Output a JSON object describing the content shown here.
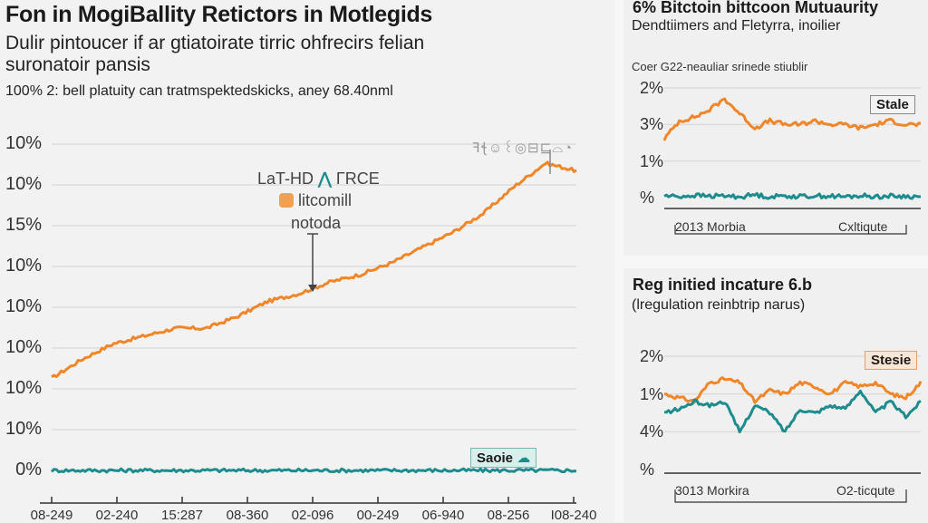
{
  "main": {
    "title": "Fon in MogiBallity Retictors in Motlegids",
    "subtitle": "Dulir pintoucer if ar gtiatoirate tirric ohfrecirs felian suronatoir pansis",
    "note": "100% 2: bell platuity can tratmspektedskicks, aney 68.40nml",
    "annotation": {
      "line1": "LaT-HD",
      "line1b": "ΓRCE",
      "line2": "litcomill",
      "line3": "notoda",
      "peak_label": "ꟻꞎ☺꒰◎⊟⊑⌓◔"
    },
    "legend_tag": "Saoie"
  },
  "panel1": {
    "title": "6% Bitctoin bittcoon Mutuaurity",
    "subtitle": "Dendtiimers and Fletyrra, inoilier",
    "caption": "Coer G22-neauliar srinede stiublir",
    "legend_tag": "Stale",
    "x_start": "2013 Morbia",
    "x_end": "Cxltiqute"
  },
  "panel2": {
    "title": "Reg initied incature 6.b",
    "subtitle": "(lregulation reinbtrip narus)",
    "legend_tag": "Stesie",
    "x_start": "3013 Morkira",
    "x_end": "O2-ticqute"
  },
  "colors": {
    "orange": "#f0862a",
    "teal": "#1e8c8c",
    "grid": "#dcdcdc",
    "axis": "#333333"
  },
  "chart_data": [
    {
      "type": "line",
      "title": "Fon in MogiBallity Retictors in Motlegids",
      "y_tick_labels": [
        "10%",
        "10%",
        "15%",
        "10%",
        "10%",
        "10%",
        "10%",
        "10%",
        "0%"
      ],
      "x_tick_labels": [
        "08-249",
        "02-240",
        "15:287",
        "08-360",
        "02-096",
        "00-249",
        "06-940",
        "08-256",
        "I08-240"
      ],
      "ylim": [
        0,
        8
      ],
      "grid": true,
      "series": [
        {
          "name": "orange",
          "color": "#f0862a",
          "values": [
            2.4,
            2.9,
            3.3,
            3.5,
            3.7,
            3.7,
            4.0,
            4.4,
            4.6,
            4.9,
            5.1,
            5.4,
            5.8,
            6.2,
            6.7,
            7.4,
            8.0,
            7.8
          ]
        },
        {
          "name": "teal",
          "color": "#1e8c8c",
          "values": [
            0.0,
            0.0,
            0.0,
            0.0,
            0.0,
            0.0,
            0.0,
            0.0,
            0.0,
            0.0,
            0.0,
            0.0,
            0.0,
            0.0,
            0.0,
            0.0,
            0.0,
            0.0
          ]
        }
      ],
      "legend": "bottom-right"
    },
    {
      "type": "line",
      "title": "6% Bitctoin bittcoon Mutuaurity",
      "y_tick_labels": [
        "2%",
        "3%",
        "1%",
        "%"
      ],
      "ylim": [
        0,
        3
      ],
      "grid": true,
      "series": [
        {
          "name": "orange",
          "color": "#f0862a",
          "values": [
            1.6,
            2.1,
            2.2,
            2.4,
            2.7,
            2.3,
            1.9,
            2.1,
            2.0,
            2.0,
            2.1,
            2.0,
            2.0,
            1.9,
            2.0,
            2.1,
            2.0,
            2.0
          ]
        },
        {
          "name": "teal",
          "color": "#1e8c8c",
          "values": [
            0.05,
            0.03,
            0.06,
            0.04,
            0.05,
            0.02,
            0.08,
            0.02,
            0.05,
            0.03,
            0.05,
            0.04,
            0.02,
            0.05,
            0.03,
            0.04,
            0.03,
            0.02
          ]
        }
      ],
      "legend": "top-right"
    },
    {
      "type": "line",
      "title": "Reg initied incature 6.b",
      "y_tick_labels": [
        "2%",
        "1%",
        "4%",
        "%"
      ],
      "ylim": [
        0,
        3
      ],
      "grid": true,
      "series": [
        {
          "name": "orange",
          "color": "#f0862a",
          "values": [
            2.0,
            1.9,
            1.8,
            2.3,
            2.4,
            2.3,
            1.8,
            2.1,
            2.0,
            2.3,
            2.2,
            2.0,
            2.3,
            2.2,
            2.3,
            2.0,
            1.9,
            2.3
          ]
        },
        {
          "name": "teal",
          "color": "#1e8c8c",
          "values": [
            1.5,
            1.6,
            1.8,
            1.7,
            1.8,
            1.0,
            1.7,
            1.5,
            1.0,
            1.6,
            1.5,
            1.7,
            1.6,
            2.1,
            1.5,
            1.8,
            1.4,
            1.8
          ]
        }
      ],
      "legend": "top-right"
    }
  ]
}
